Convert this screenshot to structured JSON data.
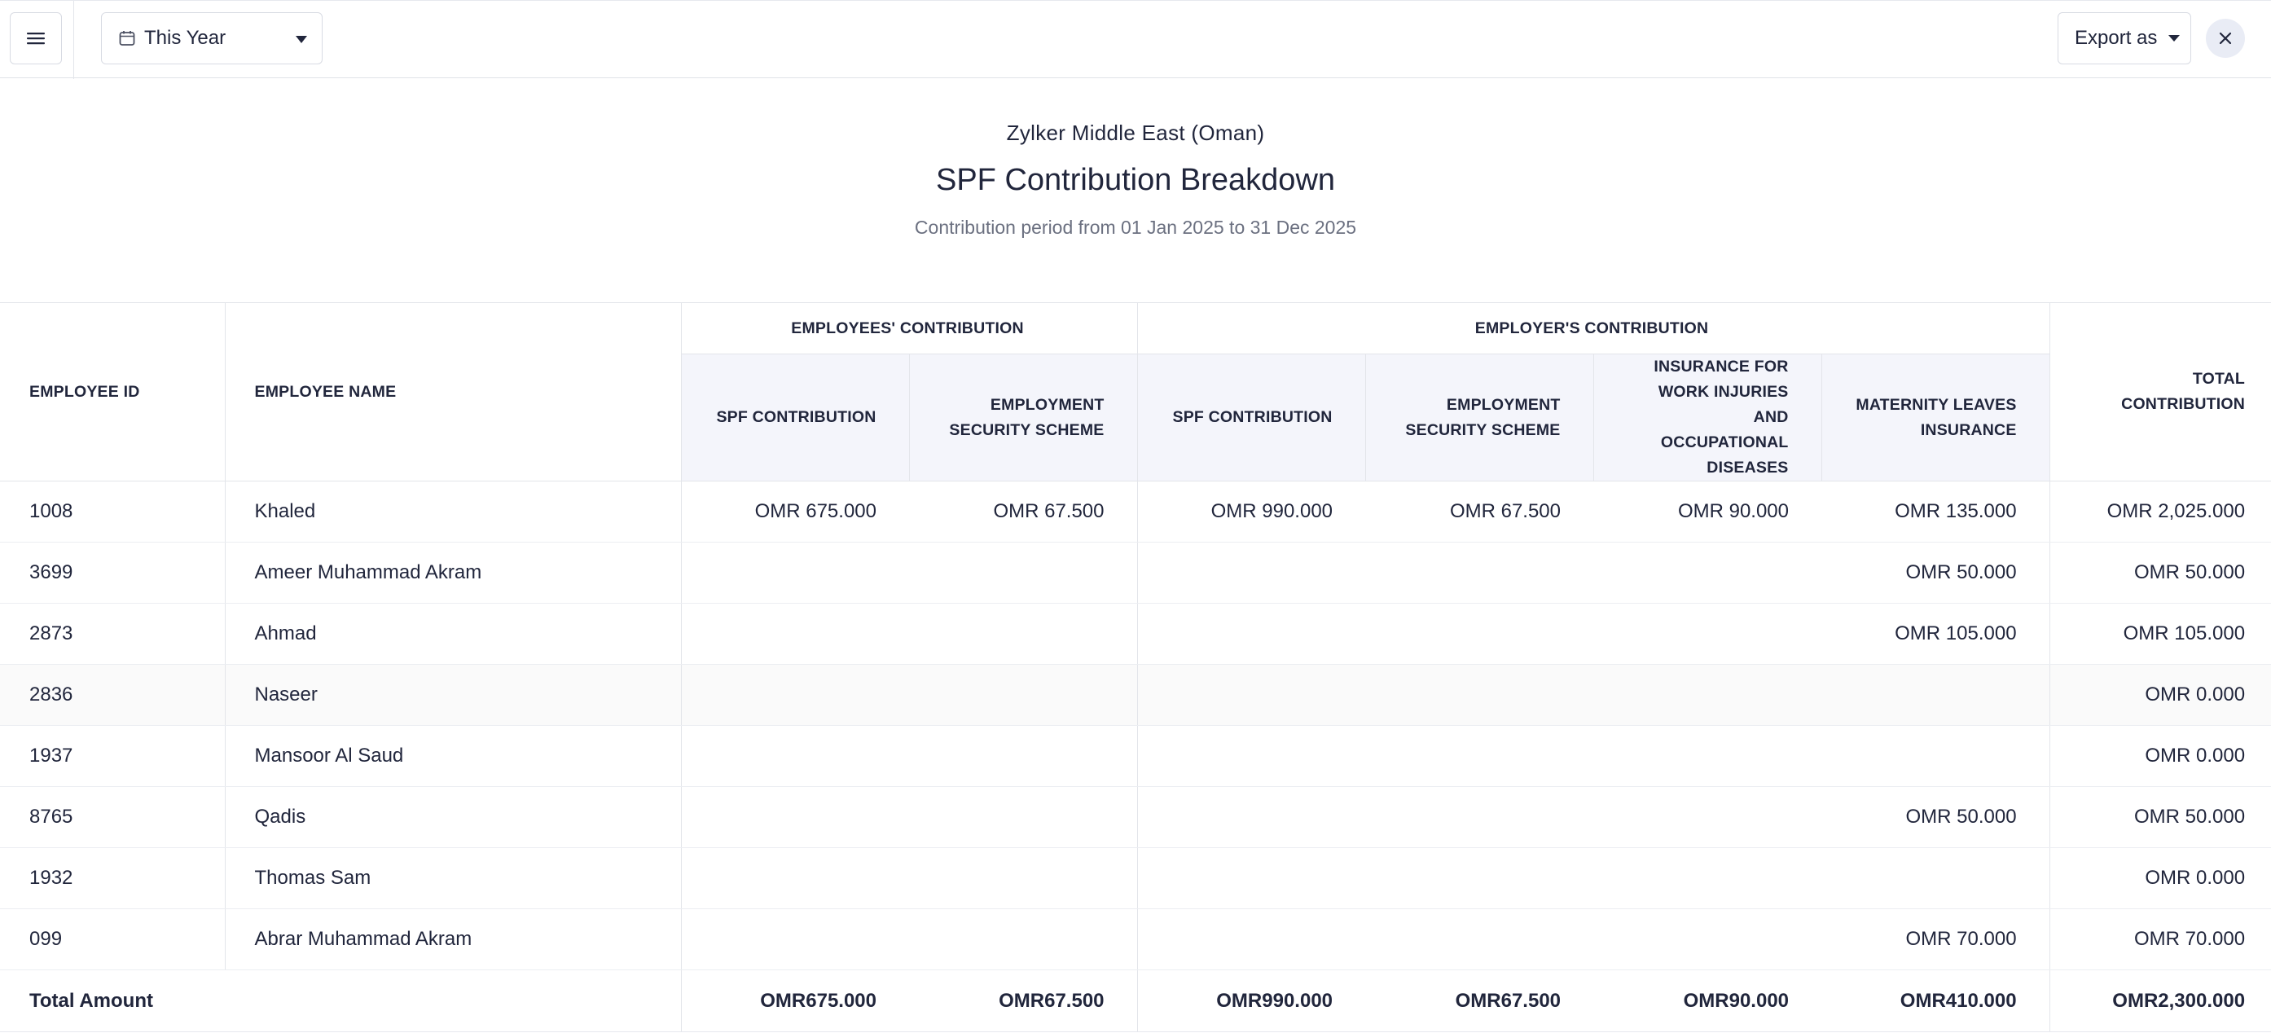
{
  "toolbar": {
    "menu_icon": "hamburger-icon",
    "period_icon": "calendar-icon",
    "period_label": "This Year",
    "export_label": "Export as",
    "close_icon": "close-icon"
  },
  "report": {
    "org_name": "Zylker Middle East (Oman)",
    "title": "SPF Contribution Breakdown",
    "period": "Contribution period from 01 Jan 2025 to 31 Dec 2025"
  },
  "table": {
    "headers": {
      "employee_id": "EMPLOYEE ID",
      "employee_name": "EMPLOYEE NAME",
      "employees_group": "EMPLOYEES' CONTRIBUTION",
      "employer_group": "EMPLOYER'S CONTRIBUTION",
      "total": "TOTAL CONTRIBUTION",
      "emp_spf": "SPF CONTRIBUTION",
      "emp_ess": "EMPLOYMENT SECURITY SCHEME",
      "er_spf": "SPF CONTRIBUTION",
      "er_ess": "EMPLOYMENT SECURITY SCHEME",
      "er_insurance": "INSURANCE FOR WORK INJURIES AND OCCUPATIONAL DISEASES",
      "er_maternity": "MATERNITY LEAVES INSURANCE"
    },
    "rows": [
      {
        "id": "1008",
        "name": "Khaled",
        "emp_spf": "OMR 675.000",
        "emp_ess": "OMR 67.500",
        "er_spf": "OMR 990.000",
        "er_ess": "OMR 67.500",
        "er_insurance": "OMR 90.000",
        "er_maternity": "OMR 135.000",
        "total": "OMR 2,025.000"
      },
      {
        "id": "3699",
        "name": "Ameer Muhammad Akram",
        "emp_spf": "",
        "emp_ess": "",
        "er_spf": "",
        "er_ess": "",
        "er_insurance": "",
        "er_maternity": "OMR 50.000",
        "total": "OMR 50.000"
      },
      {
        "id": "2873",
        "name": "Ahmad",
        "emp_spf": "",
        "emp_ess": "",
        "er_spf": "",
        "er_ess": "",
        "er_insurance": "",
        "er_maternity": "OMR 105.000",
        "total": "OMR 105.000"
      },
      {
        "id": "2836",
        "name": "Naseer",
        "emp_spf": "",
        "emp_ess": "",
        "er_spf": "",
        "er_ess": "",
        "er_insurance": "",
        "er_maternity": "",
        "total": "OMR 0.000"
      },
      {
        "id": "1937",
        "name": "Mansoor Al Saud",
        "emp_spf": "",
        "emp_ess": "",
        "er_spf": "",
        "er_ess": "",
        "er_insurance": "",
        "er_maternity": "",
        "total": "OMR 0.000"
      },
      {
        "id": "8765",
        "name": "Qadis",
        "emp_spf": "",
        "emp_ess": "",
        "er_spf": "",
        "er_ess": "",
        "er_insurance": "",
        "er_maternity": "OMR 50.000",
        "total": "OMR 50.000"
      },
      {
        "id": "1932",
        "name": "Thomas Sam",
        "emp_spf": "",
        "emp_ess": "",
        "er_spf": "",
        "er_ess": "",
        "er_insurance": "",
        "er_maternity": "",
        "total": "OMR 0.000"
      },
      {
        "id": "099",
        "name": "Abrar Muhammad Akram",
        "emp_spf": "",
        "emp_ess": "",
        "er_spf": "",
        "er_ess": "",
        "er_insurance": "",
        "er_maternity": "OMR 70.000",
        "total": "OMR 70.000"
      }
    ],
    "totals": {
      "label": "Total Amount",
      "emp_spf": "OMR675.000",
      "emp_ess": "OMR67.500",
      "er_spf": "OMR990.000",
      "er_ess": "OMR67.500",
      "er_insurance": "OMR90.000",
      "er_maternity": "OMR410.000",
      "total": "OMR2,300.000"
    }
  }
}
